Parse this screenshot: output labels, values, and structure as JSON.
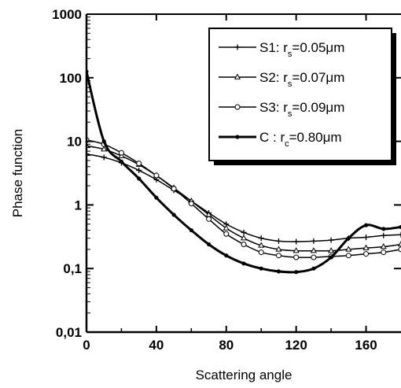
{
  "chart_data": {
    "type": "line",
    "xlabel": "Scattering angle",
    "ylabel": "Phase function",
    "xlim": [
      0,
      180
    ],
    "ylim": [
      0.01,
      1000
    ],
    "yscale": "log",
    "xticks": [
      0,
      40,
      80,
      120,
      160
    ],
    "xtick_labels": [
      "0",
      "40",
      "80",
      "120",
      "160"
    ],
    "yticks": [
      0.01,
      0.1,
      1,
      10,
      100,
      1000
    ],
    "ytick_labels": [
      "0,01",
      "0,1",
      "1",
      "10",
      "100",
      "1000"
    ],
    "grid": false,
    "legend_position": "top-right",
    "x": [
      0,
      10,
      20,
      30,
      40,
      50,
      60,
      70,
      80,
      90,
      100,
      110,
      120,
      130,
      140,
      150,
      160,
      170,
      180
    ],
    "series": [
      {
        "name": "S1",
        "label": {
          "prefix": "S1:  r",
          "sub": "s",
          "suffix": "=0.05μm"
        },
        "marker": "plus",
        "line_width": 1.5,
        "values": [
          6.3,
          5.6,
          4.6,
          3.5,
          2.5,
          1.7,
          1.15,
          0.75,
          0.5,
          0.37,
          0.3,
          0.27,
          0.265,
          0.27,
          0.28,
          0.3,
          0.31,
          0.33,
          0.34
        ]
      },
      {
        "name": "S2",
        "label": {
          "prefix": "S2:  r",
          "sub": "s",
          "suffix": "=0.07μm"
        },
        "marker": "triangle",
        "line_width": 1.5,
        "values": [
          8.5,
          7.5,
          5.9,
          4.3,
          2.9,
          1.85,
          1.15,
          0.7,
          0.43,
          0.3,
          0.23,
          0.2,
          0.19,
          0.19,
          0.19,
          0.2,
          0.21,
          0.22,
          0.24
        ]
      },
      {
        "name": "S3",
        "label": {
          "prefix": "S3:  r",
          "sub": "s",
          "suffix": "=0.09μm"
        },
        "marker": "circle-open",
        "line_width": 1.5,
        "values": [
          10.5,
          9.0,
          6.6,
          4.5,
          2.9,
          1.8,
          1.05,
          0.6,
          0.35,
          0.24,
          0.18,
          0.16,
          0.15,
          0.15,
          0.155,
          0.16,
          0.17,
          0.18,
          0.2
        ]
      },
      {
        "name": "C",
        "label": {
          "prefix": "C : r",
          "sub": "c",
          "suffix": "=0.80μm"
        },
        "marker": "circle-filled",
        "line_width": 3,
        "values": [
          125,
          10,
          4.8,
          2.6,
          1.3,
          0.7,
          0.4,
          0.24,
          0.16,
          0.12,
          0.1,
          0.09,
          0.088,
          0.1,
          0.15,
          0.3,
          0.48,
          0.42,
          0.45
        ]
      }
    ]
  }
}
